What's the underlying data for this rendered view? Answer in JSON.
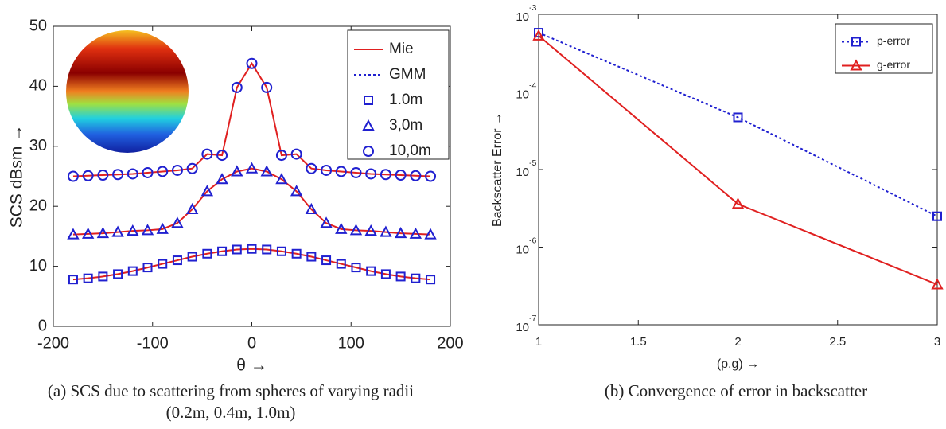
{
  "chart_data": [
    {
      "type": "line",
      "ylabel": "SCS dBsm →",
      "xlabel": "θ →",
      "caption": [
        "(a) SCS due to scattering from spheres of varying radii",
        "(0.2m, 0.4m, 1.0m)"
      ],
      "xlim": [
        -200,
        200
      ],
      "xticks": [
        -200,
        -100,
        0,
        100,
        200
      ],
      "ylim": [
        0,
        50
      ],
      "yticks": [
        0,
        10,
        20,
        30,
        40,
        50
      ],
      "legend": "upper right",
      "x": [
        -180,
        -165,
        -150,
        -135,
        -120,
        -105,
        -90,
        -75,
        -60,
        -45,
        -30,
        -15,
        0,
        15,
        30,
        45,
        60,
        75,
        90,
        105,
        120,
        135,
        150,
        165,
        180
      ],
      "series": [
        {
          "name": "Mie",
          "color": "#e02020",
          "style": "solid",
          "values": [
            [
              7.8,
              8.0,
              8.3,
              8.7,
              9.2,
              9.8,
              10.4,
              11.0,
              11.6,
              12.1,
              12.5,
              12.8,
              12.9,
              12.8,
              12.5,
              12.1,
              11.6,
              11.0,
              10.4,
              9.8,
              9.2,
              8.7,
              8.3,
              8.0,
              7.8
            ],
            [
              15.3,
              15.4,
              15.5,
              15.7,
              15.9,
              16.0,
              16.2,
              17.2,
              19.5,
              22.5,
              24.5,
              25.8,
              26.3,
              25.8,
              24.5,
              22.5,
              19.5,
              17.2,
              16.2,
              16.0,
              15.9,
              15.7,
              15.5,
              15.4,
              15.3
            ],
            [
              25.0,
              25.1,
              25.2,
              25.3,
              25.4,
              25.6,
              25.8,
              26.0,
              26.3,
              28.7,
              28.5,
              39.8,
              43.8,
              39.8,
              28.5,
              28.7,
              26.3,
              26.0,
              25.8,
              25.6,
              25.4,
              25.3,
              25.2,
              25.1,
              25.0
            ]
          ]
        },
        {
          "name": "GMM",
          "color": "#2020d0",
          "style": "dotted"
        },
        {
          "name": "1.0m",
          "color": "#2020d0",
          "marker": "square",
          "values": [
            7.8,
            8.0,
            8.3,
            8.7,
            9.2,
            9.8,
            10.4,
            11.0,
            11.6,
            12.1,
            12.5,
            12.8,
            12.9,
            12.8,
            12.5,
            12.1,
            11.6,
            11.0,
            10.4,
            9.8,
            9.2,
            8.7,
            8.3,
            8.0,
            7.8
          ]
        },
        {
          "name": "3,0m",
          "color": "#2020d0",
          "marker": "triangle",
          "values": [
            15.3,
            15.4,
            15.5,
            15.7,
            15.9,
            16.0,
            16.2,
            17.2,
            19.5,
            22.5,
            24.5,
            25.8,
            26.3,
            25.8,
            24.5,
            22.5,
            19.5,
            17.2,
            16.2,
            16.0,
            15.9,
            15.7,
            15.5,
            15.4,
            15.3
          ]
        },
        {
          "name": "10,0m",
          "color": "#2020d0",
          "marker": "circle",
          "values": [
            25.0,
            25.1,
            25.2,
            25.3,
            25.4,
            25.6,
            25.8,
            26.0,
            26.3,
            28.7,
            28.5,
            39.8,
            43.8,
            39.8,
            28.5,
            28.7,
            26.3,
            26.0,
            25.8,
            25.6,
            25.4,
            25.3,
            25.2,
            25.1,
            25.0
          ]
        }
      ]
    },
    {
      "type": "line",
      "ylabel": "Backscatter Error →",
      "xlabel": "(p,g) →",
      "caption": [
        "(b)  Convergence of error in backscatter"
      ],
      "log_y": true,
      "legend": "upper right",
      "xlim": [
        1,
        3
      ],
      "xticks": [
        1,
        1.5,
        2,
        2.5,
        3
      ],
      "ylim": [
        1e-07,
        0.001
      ],
      "yticks": [
        {
          "value": 1e-07,
          "label": "10",
          "sup": "-7"
        },
        {
          "value": 1e-06,
          "label": "10",
          "sup": "-6"
        },
        {
          "value": 1e-05,
          "label": "10",
          "sup": "-5"
        },
        {
          "value": 0.0001,
          "label": "10",
          "sup": "-4"
        },
        {
          "value": 0.001,
          "label": "10",
          "sup": "-3"
        }
      ],
      "x": [
        1,
        2,
        3
      ],
      "series": [
        {
          "name": "p-error",
          "color": "#2020d0",
          "style": "dotted",
          "marker": "square",
          "values": [
            0.00058,
            4.7e-05,
            2.5e-06
          ]
        },
        {
          "name": "g-error",
          "color": "#e02020",
          "style": "solid",
          "marker": "triangle",
          "values": [
            0.00053,
            3.6e-06,
            3.3e-07
          ]
        }
      ]
    }
  ]
}
